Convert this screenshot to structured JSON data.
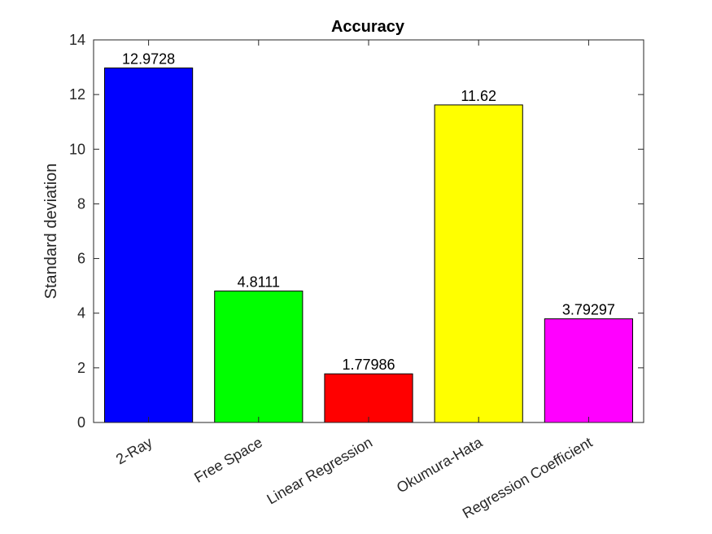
{
  "chart_data": {
    "type": "bar",
    "title": "Accuracy",
    "xlabel": "",
    "ylabel": "Standard deviation",
    "ylim": [
      0,
      14
    ],
    "yticks": [
      0,
      2,
      4,
      6,
      8,
      10,
      12,
      14
    ],
    "categories": [
      "2-Ray",
      "Free Space",
      "Linear Regression",
      "Okumura-Hata",
      "Regression Coefficient"
    ],
    "values": [
      12.9728,
      4.8111,
      1.77986,
      11.62,
      3.79297
    ],
    "data_labels": [
      "12.9728",
      "4.8111",
      "1.77986",
      "11.62",
      "3.79297"
    ],
    "colors": [
      "#0000ff",
      "#00ff00",
      "#ff0000",
      "#ffff00",
      "#ff00ff"
    ],
    "grid": false,
    "legend": "none"
  }
}
